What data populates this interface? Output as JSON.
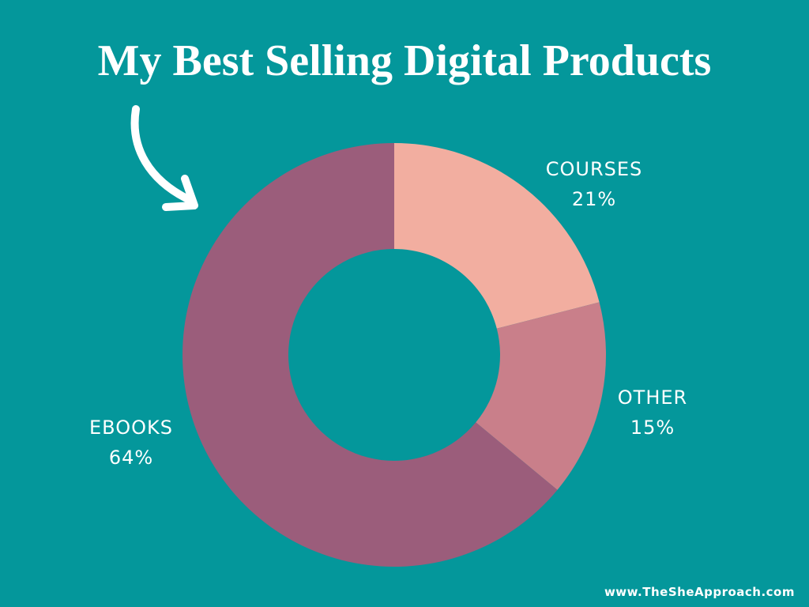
{
  "title": "My Best Selling Digital Products",
  "footer": "www.TheSheApproach.com",
  "colors": {
    "background": "#04979b",
    "courses": "#f2aea0",
    "other": "#c97f8a",
    "ebooks": "#9b5d7b",
    "text": "#ffffff"
  },
  "chart_data": {
    "type": "pie",
    "style": "donut",
    "categories": [
      "COURSES",
      "OTHER",
      "EBOOKS"
    ],
    "values": [
      21,
      15,
      64
    ],
    "value_labels": [
      "21%",
      "15%",
      "64%"
    ],
    "unit": "%"
  }
}
